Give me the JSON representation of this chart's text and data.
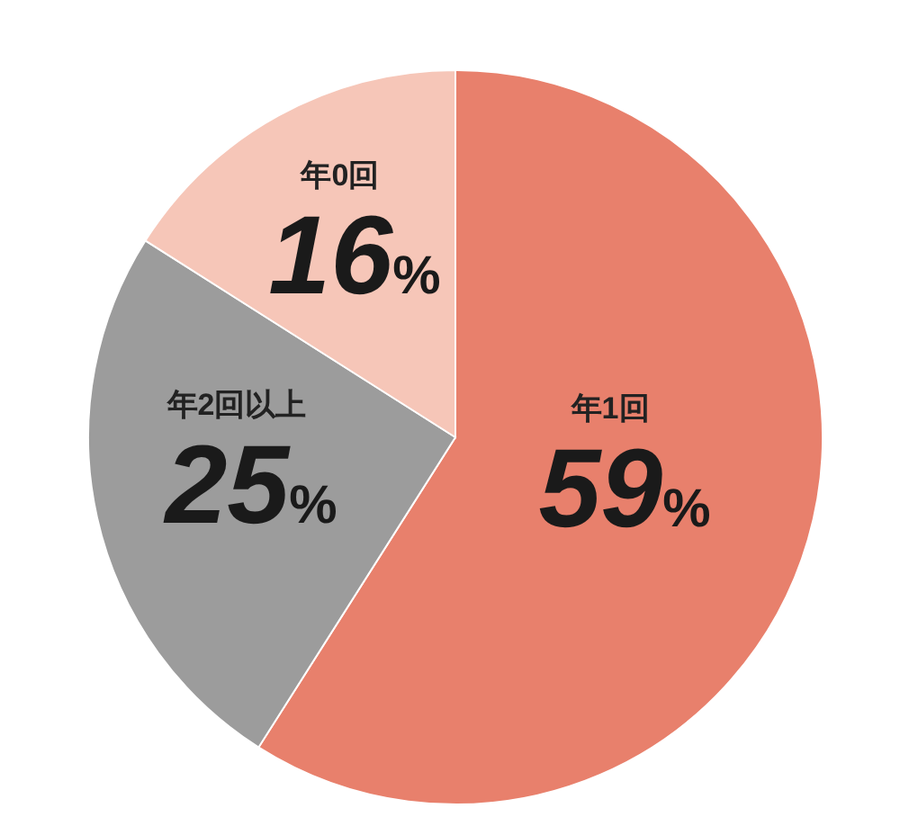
{
  "chart_data": {
    "type": "pie",
    "categories": [
      "年1回",
      "年2回以上",
      "年0回"
    ],
    "values": [
      59,
      25,
      16
    ],
    "colors": [
      "#e8806c",
      "#9c9c9c",
      "#f6c6b8"
    ],
    "value_labels": [
      "59%",
      "25%",
      "16%"
    ]
  }
}
